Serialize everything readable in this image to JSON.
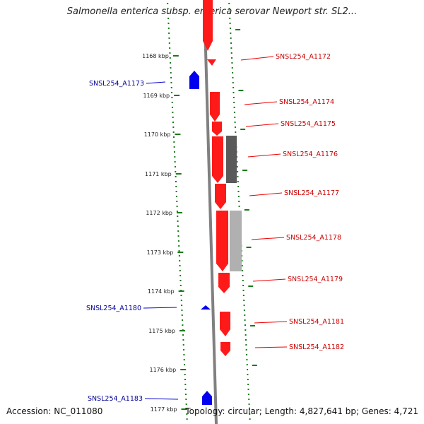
{
  "title": "Salmonella enterica subsp. enterica serovar Newport str. SL2...",
  "footer": {
    "accession": "Accession: NC_011080",
    "topology": "Topology: circular; Length: 4,827,641 bp; Genes: 4,721"
  },
  "ticks": [
    {
      "label": "1168 kbp"
    },
    {
      "label": "1169 kbp"
    },
    {
      "label": "1170 kbp"
    },
    {
      "label": "1171 kbp"
    },
    {
      "label": "1172 kbp"
    },
    {
      "label": "1173 kbp"
    },
    {
      "label": "1174 kbp"
    },
    {
      "label": "1175 kbp"
    },
    {
      "label": "1176 kbp"
    },
    {
      "label": "1177 kbp"
    }
  ],
  "genes_forward": [
    {
      "name": "SNSL254_A1172"
    },
    {
      "name": "SNSL254_A1174"
    },
    {
      "name": "SNSL254_A1175"
    },
    {
      "name": "SNSL254_A1176"
    },
    {
      "name": "SNSL254_A1177"
    },
    {
      "name": "SNSL254_A1178"
    },
    {
      "name": "SNSL254_A1179"
    },
    {
      "name": "SNSL254_A1181"
    },
    {
      "name": "SNSL254_A1182"
    }
  ],
  "genes_reverse": [
    {
      "name": "SNSL254_A1173"
    },
    {
      "name": "SNSL254_A1180"
    },
    {
      "name": "SNSL254_A1183"
    }
  ],
  "colors": {
    "forward": "#ff1a1a",
    "reverse": "#0000ee",
    "backbone": "#808080",
    "ticks": "#1a7a1a",
    "gc_dark": "#5a5a5a",
    "gc_light": "#b0b0b0"
  }
}
